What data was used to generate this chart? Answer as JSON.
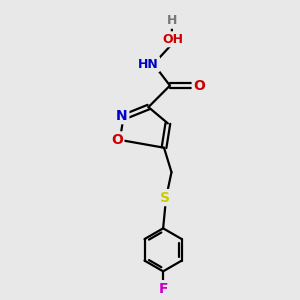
{
  "bg_color": "#e8e8e8",
  "atom_colors": {
    "C": "#000000",
    "N": "#0000cc",
    "O": "#cc0000",
    "S": "#cccc00",
    "F": "#cc00cc",
    "H": "#777777"
  },
  "bond_color": "#000000",
  "bond_width": 1.6,
  "font_size": 10,
  "fig_size": [
    3.0,
    3.0
  ],
  "dpi": 100
}
